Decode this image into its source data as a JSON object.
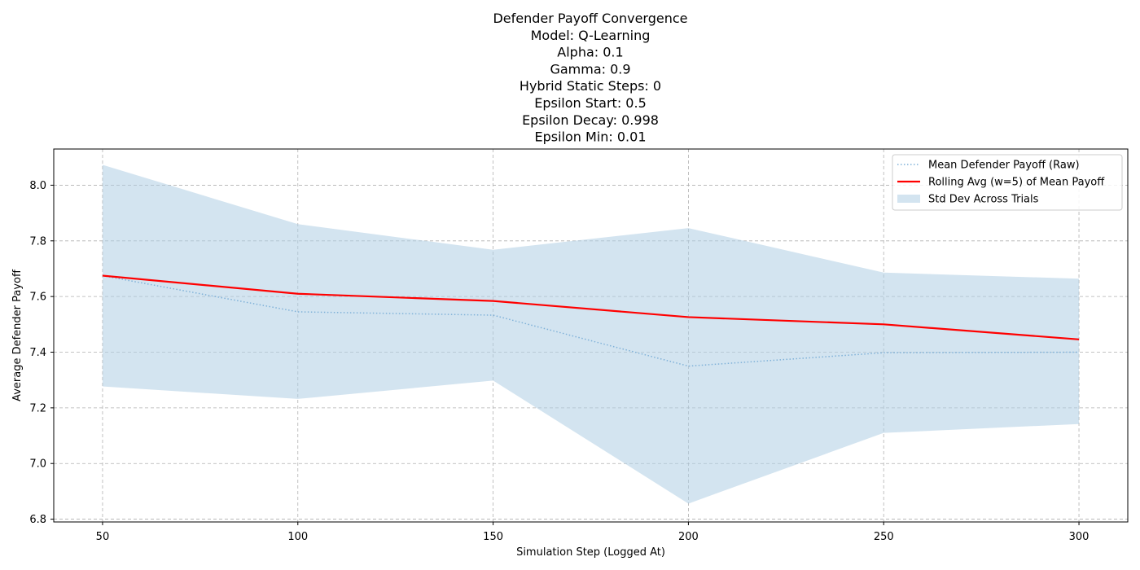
{
  "chart_data": {
    "type": "line",
    "title_lines": [
      "Defender Payoff Convergence",
      "Model: Q-Learning",
      "Alpha: 0.1",
      "Gamma: 0.9",
      "Hybrid Static Steps: 0",
      "Epsilon Start: 0.5",
      "Epsilon Decay: 0.998",
      "Epsilon Min: 0.01"
    ],
    "xlabel": "Simulation Step (Logged At)",
    "ylabel": "Average Defender Payoff",
    "x": [
      50,
      100,
      150,
      200,
      250,
      300
    ],
    "xlim": [
      37.5,
      312.5
    ],
    "ylim": [
      6.79,
      8.13
    ],
    "xticks": [
      50,
      100,
      150,
      200,
      250,
      300
    ],
    "yticks": [
      6.8,
      7.0,
      7.2,
      7.4,
      7.6,
      7.8,
      8.0
    ],
    "ytick_labels": [
      "6.8",
      "7.0",
      "7.2",
      "7.4",
      "7.6",
      "7.8",
      "8.0"
    ],
    "grid": true,
    "legend_position": "top-right",
    "series": [
      {
        "name": "Mean Defender Payoff (Raw)",
        "style": "dotted",
        "color": "#7fb1d8",
        "values": [
          7.675,
          7.545,
          7.533,
          7.35,
          7.398,
          7.4
        ]
      },
      {
        "name": "Rolling Avg (w=5) of Mean Payoff",
        "style": "solid",
        "color": "#ff0000",
        "values": [
          7.675,
          7.61,
          7.584,
          7.526,
          7.5,
          7.446
        ]
      }
    ],
    "band": {
      "name": "Std Dev Across Trials",
      "color": "#aecde3",
      "upper": [
        8.073,
        7.86,
        7.768,
        7.846,
        7.686,
        7.664
      ],
      "lower": [
        7.277,
        7.232,
        7.298,
        6.856,
        7.11,
        7.142
      ]
    }
  }
}
